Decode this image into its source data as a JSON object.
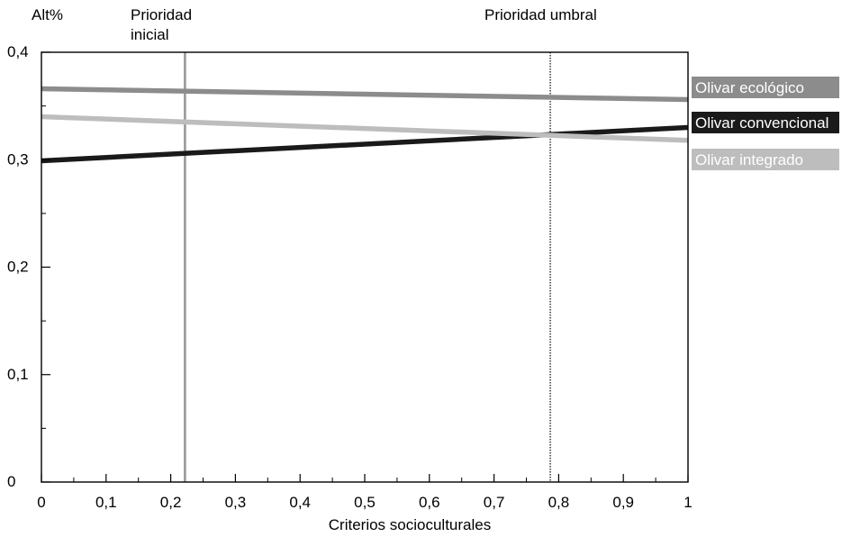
{
  "chart_data": {
    "type": "line",
    "xlabel": "Criterios socioculturales",
    "ylabel": "Alt%",
    "xlim": [
      0,
      1
    ],
    "ylim": [
      0,
      0.4
    ],
    "x_ticks": [
      0,
      0.1,
      0.2,
      0.3,
      0.4,
      0.5,
      0.6,
      0.7,
      0.8,
      0.9,
      1
    ],
    "x_tick_labels": [
      "0",
      "0,1",
      "0,2",
      "0,3",
      "0,4",
      "0,5",
      "0,6",
      "0,7",
      "0,8",
      "0,9",
      "1"
    ],
    "y_labeled_ticks": [
      0,
      0.1,
      0.2,
      0.3,
      0.4
    ],
    "y_tick_labels": [
      "0",
      "0,1",
      "0,2",
      "0,3",
      "0,4"
    ],
    "y_minor_ticks": [
      0.05,
      0.15,
      0.25,
      0.35
    ],
    "x_minor_ticks": [
      0.05,
      0.15,
      0.25,
      0.35,
      0.45,
      0.55,
      0.65,
      0.75,
      0.85,
      0.95
    ],
    "grid": false,
    "legend_placement": "right",
    "series": [
      {
        "name": "Olivar ecológico",
        "x": [
          0,
          1
        ],
        "y": [
          0.366,
          0.356
        ],
        "color": "#8c8c8c",
        "label_bg": "#8c8c8c",
        "label_fg": "#ffffff"
      },
      {
        "name": "Olivar convencional",
        "x": [
          0,
          1
        ],
        "y": [
          0.299,
          0.33
        ],
        "color": "#1a1a1a",
        "label_bg": "#1a1a1a",
        "label_fg": "#ffffff"
      },
      {
        "name": "Olivar integrado",
        "x": [
          0,
          1
        ],
        "y": [
          0.34,
          0.318
        ],
        "color": "#bdbdbd",
        "label_bg": "#bdbdbd",
        "label_fg": "#ffffff"
      }
    ],
    "annotations": [
      {
        "label_lines": [
          "Prioridad",
          "inicial"
        ],
        "x": 0.222,
        "style": "solid",
        "color": "#999999"
      },
      {
        "label_lines": [
          "Prioridad umbral"
        ],
        "x": 0.787,
        "style": "dotted",
        "color": "#000000"
      }
    ]
  }
}
